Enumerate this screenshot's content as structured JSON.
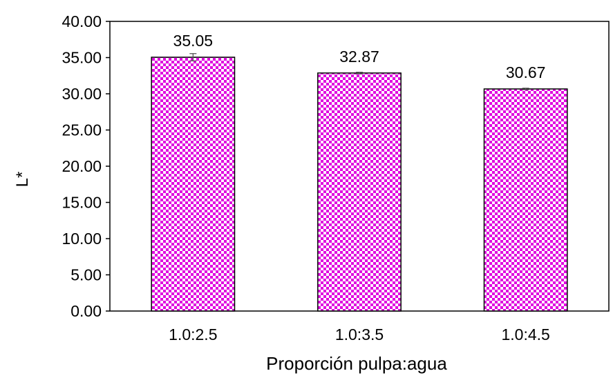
{
  "chart_data": {
    "type": "bar",
    "title": "",
    "xlabel": "Proporción pulpa:agua",
    "ylabel": "L*",
    "categories": [
      "1.0:2.5",
      "1.0:3.5",
      "1.0:4.5"
    ],
    "values": [
      35.05,
      32.87,
      30.67
    ],
    "data_labels": [
      "35.05",
      "32.87",
      "30.67"
    ],
    "error_bars": [
      0.5,
      0.1,
      0.1
    ],
    "ylim": [
      0,
      40
    ],
    "y_ticks": [
      0,
      5,
      10,
      15,
      20,
      25,
      30,
      35,
      40
    ],
    "y_tick_labels": [
      "0.00",
      "5.00",
      "10.00",
      "15.00",
      "20.00",
      "25.00",
      "30.00",
      "35.00",
      "40.00"
    ],
    "grid": false,
    "legend": "none",
    "bar_fill": "checkered pattern",
    "colors": {
      "bar_pattern_fg": "#e000e0",
      "bar_pattern_bg": "#ffffff",
      "bar_outline": "#000000",
      "axis": "#000000"
    }
  }
}
